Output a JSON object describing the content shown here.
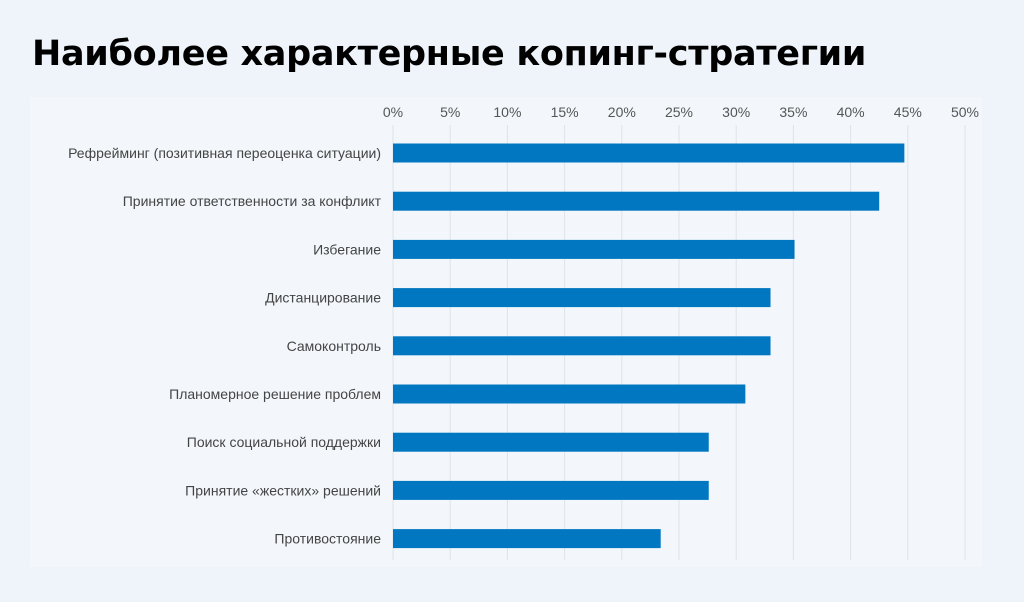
{
  "title": "Наиболее характерные копинг-стратегии",
  "chart_data": {
    "type": "bar",
    "orientation": "horizontal",
    "title": "Наиболее характерные копинг-стратегии",
    "categories": [
      "Рефрейминг (позитивная переоценка ситуации)",
      "Принятие ответственности за конфликт",
      "Избегание",
      "Дистанцирование",
      "Самоконтроль",
      "Планомерное решение проблем",
      "Поиск социальной поддержки",
      "Принятие «жестких» решений",
      "Противостояние"
    ],
    "values": [
      44.7,
      42.5,
      35.1,
      33.0,
      33.0,
      30.8,
      27.6,
      27.6,
      23.4
    ],
    "unit": "%",
    "xlim": [
      0,
      50
    ],
    "ticks": [
      "0%",
      "5%",
      "10%",
      "15%",
      "20%",
      "25%",
      "30%",
      "35%",
      "40%",
      "45%",
      "50%"
    ],
    "x_axis_position": "top",
    "grid": true,
    "bar_color": "#0077c0",
    "grid_color": "#dde3ea"
  }
}
